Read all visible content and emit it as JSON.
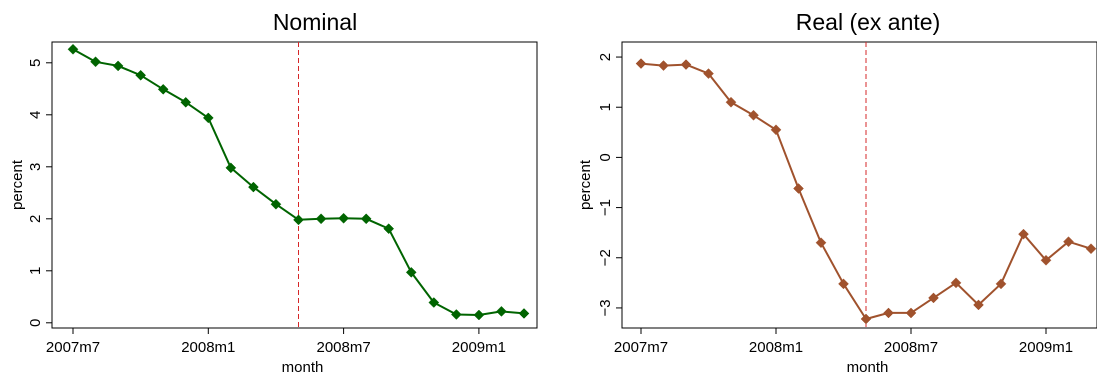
{
  "chart_data": [
    {
      "type": "line",
      "title": "Nominal",
      "xlabel": "month",
      "ylabel": "percent",
      "x": [
        "2007m7",
        "2007m8",
        "2007m9",
        "2007m10",
        "2007m11",
        "2007m12",
        "2008m1",
        "2008m2",
        "2008m3",
        "2008m4",
        "2008m5",
        "2008m6",
        "2008m7",
        "2008m8",
        "2008m9",
        "2008m10",
        "2008m11",
        "2008m12",
        "2009m1",
        "2009m2",
        "2009m3"
      ],
      "x_tick_labels": [
        "2007m7",
        "2008m1",
        "2008m7",
        "2009m1"
      ],
      "y_ticks": [
        0,
        1,
        2,
        3,
        4,
        5
      ],
      "ylim": [
        -0.1,
        5.4
      ],
      "series": [
        {
          "color": "#006400",
          "values": [
            5.26,
            5.02,
            4.94,
            4.76,
            4.49,
            4.24,
            3.94,
            2.98,
            2.61,
            2.28,
            1.98,
            2.0,
            2.01,
            2.0,
            1.81,
            0.97,
            0.39,
            0.16,
            0.15,
            0.22,
            0.18
          ]
        }
      ],
      "reference_line": {
        "x": "2008m5",
        "color": "#d62728",
        "style": "dashed"
      },
      "grid": false,
      "legend": "none"
    },
    {
      "type": "line",
      "title": "Real (ex ante)",
      "xlabel": "month",
      "ylabel": "percent",
      "x": [
        "2007m7",
        "2007m8",
        "2007m9",
        "2007m10",
        "2007m11",
        "2007m12",
        "2008m1",
        "2008m2",
        "2008m3",
        "2008m4",
        "2008m5",
        "2008m6",
        "2008m7",
        "2008m8",
        "2008m9",
        "2008m10",
        "2008m11",
        "2008m12",
        "2009m1",
        "2009m2",
        "2009m3"
      ],
      "x_tick_labels": [
        "2007m7",
        "2008m1",
        "2008m7",
        "2009m1"
      ],
      "y_ticks": [
        -3,
        -2,
        -1,
        0,
        1,
        2
      ],
      "y_tick_labels": [
        "−3",
        "−2",
        "−1",
        "0",
        "1",
        "2"
      ],
      "ylim": [
        -3.4,
        2.3
      ],
      "series": [
        {
          "color": "#a0522d",
          "values": [
            1.87,
            1.83,
            1.85,
            1.67,
            1.1,
            0.84,
            0.55,
            -0.62,
            -1.7,
            -2.52,
            -3.22,
            -3.1,
            -3.1,
            -2.8,
            -2.5,
            -2.94,
            -2.52,
            -1.53,
            -2.05,
            -1.68,
            -1.82
          ]
        }
      ],
      "reference_line": {
        "x": "2008m5",
        "color": "#d62728",
        "style": "dashed"
      },
      "grid": false,
      "legend": "none"
    }
  ]
}
